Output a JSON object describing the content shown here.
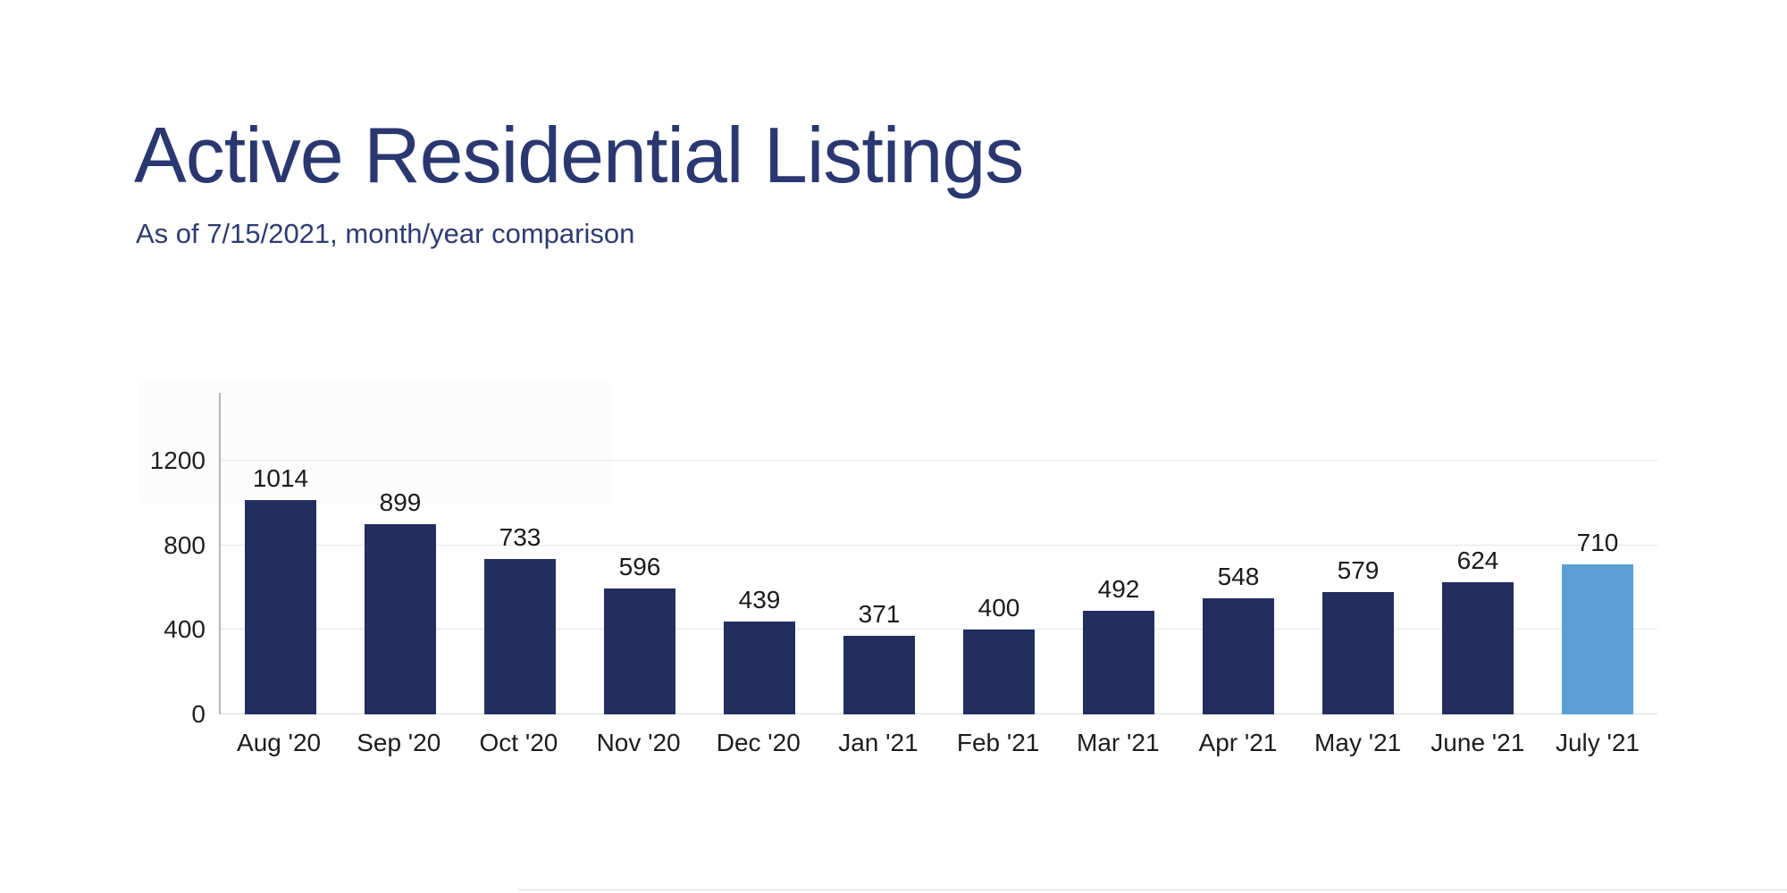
{
  "header": {
    "title": "Active Residential Listings",
    "subtitle": "As of 7/15/2021, month/year comparison"
  },
  "chart_data": {
    "type": "bar",
    "title": "Active Residential Listings",
    "subtitle": "As of 7/15/2021, month/year comparison",
    "categories": [
      "Aug '20",
      "Sep '20",
      "Oct '20",
      "Nov '20",
      "Dec '20",
      "Jan '21",
      "Feb '21",
      "Mar '21",
      "Apr '21",
      "May '21",
      "June '21",
      "July '21"
    ],
    "values": [
      1014,
      899,
      733,
      596,
      439,
      371,
      400,
      492,
      548,
      579,
      624,
      710
    ],
    "xlabel": "",
    "ylabel": "",
    "ylim": [
      0,
      1520
    ],
    "yticks": [
      0,
      400,
      800,
      1200
    ],
    "grid": true,
    "legend": false,
    "bar_color": "#232e5f",
    "highlight_index": 11,
    "highlight_color": "#5b9fd6"
  },
  "colors": {
    "title_text": "#2b3770",
    "subtitle_text": "#2e3b72",
    "bar_default": "#232e5f",
    "bar_highlight": "#5b9fd6",
    "gridline": "#e4e7ee",
    "axis_line": "#b3b6bd",
    "label_text": "#1a1a1a",
    "background": "#ffffff"
  }
}
